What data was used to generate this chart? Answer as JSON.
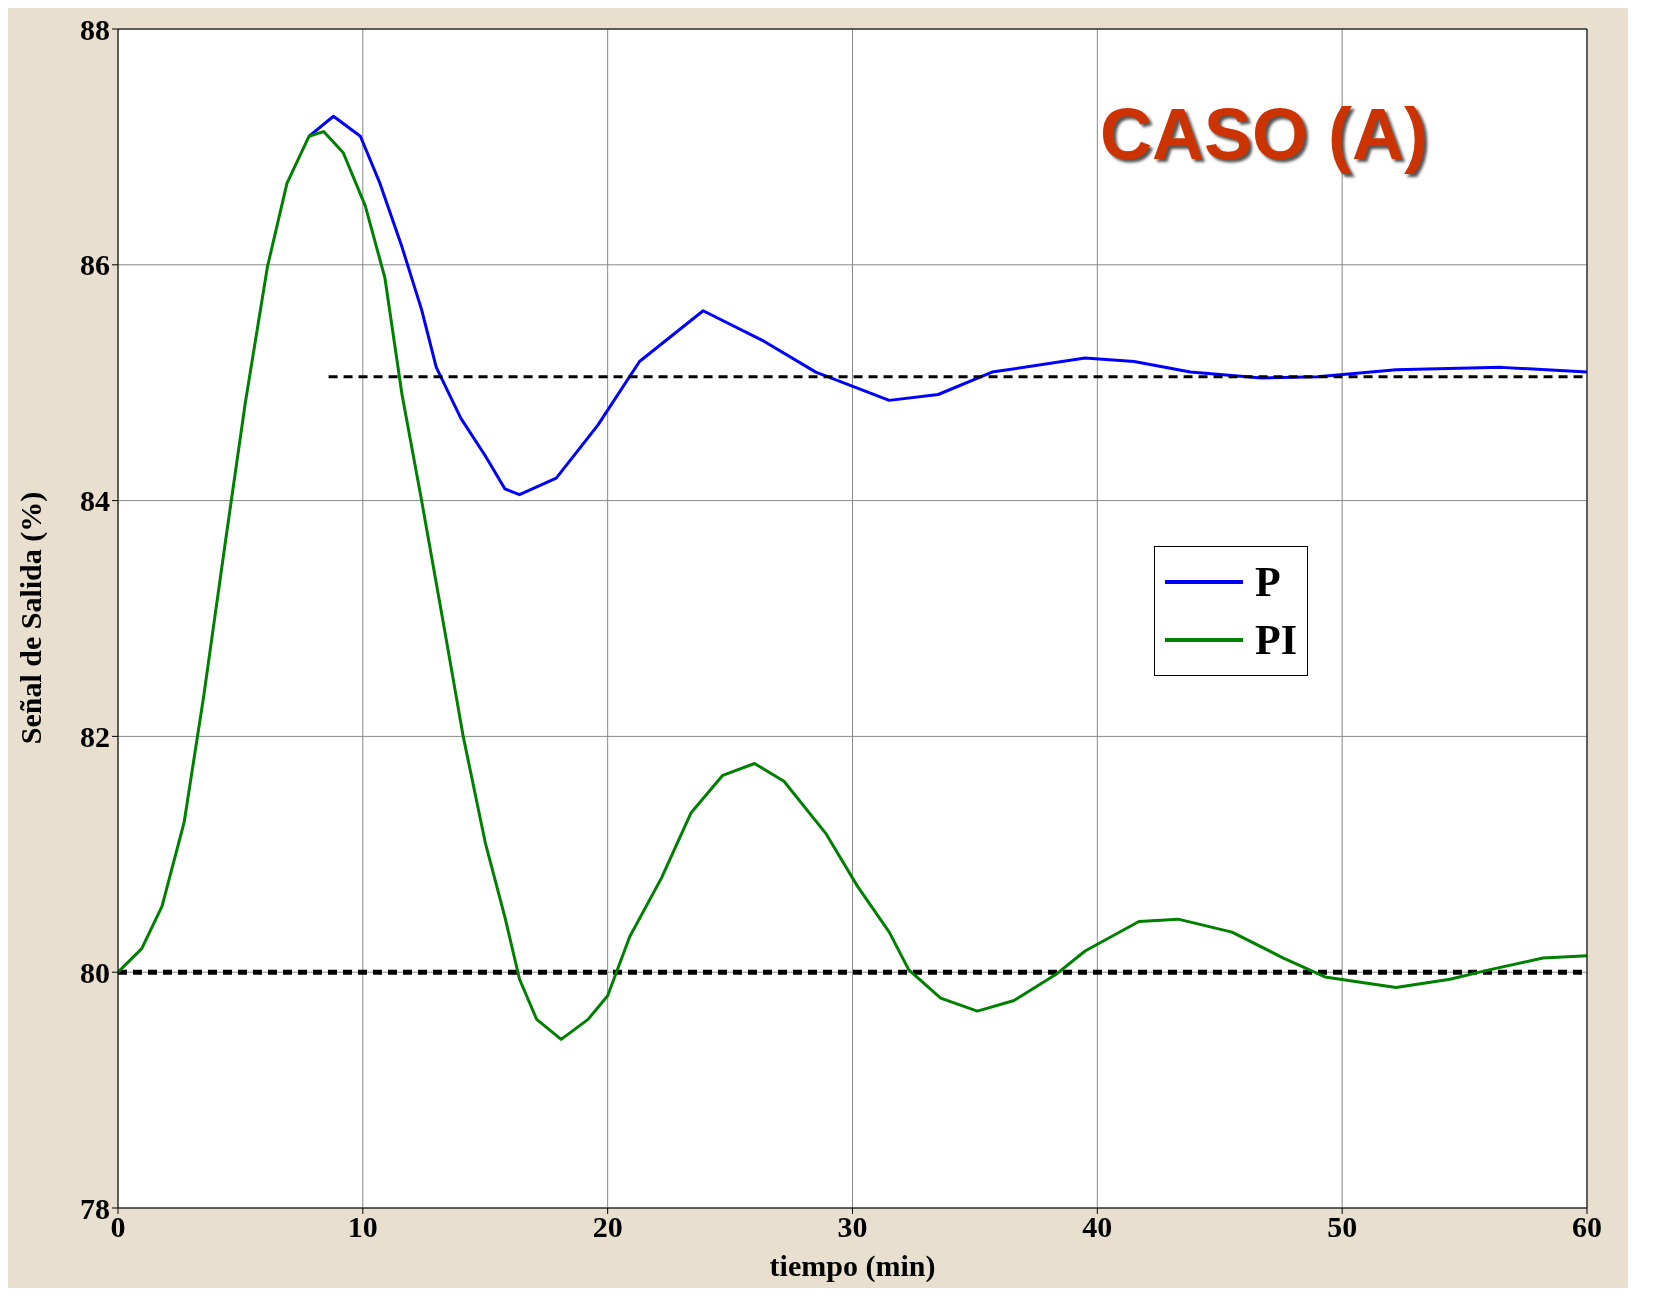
{
  "chart_data": {
    "type": "line",
    "xlabel": "tiempo (min)",
    "ylabel": "Señal de Salida (%)",
    "annotations": [
      "CASO (A)"
    ],
    "xlim": [
      0,
      60
    ],
    "ylim": [
      78,
      88
    ],
    "xticks": [
      0,
      10,
      20,
      30,
      40,
      50,
      60
    ],
    "yticks": [
      78,
      80,
      82,
      84,
      86,
      88
    ],
    "grid": true,
    "legend": "right",
    "series": [
      {
        "name": "P",
        "color": "#0000ff",
        "x": [
          7.8,
          8.8,
          9.9,
          10.7,
          11.6,
          12.4,
          13,
          14,
          15,
          15.8,
          16.4,
          17.9,
          19.6,
          21.3,
          23.9,
          26.4,
          28.5,
          31.5,
          33.5,
          35.7,
          39.5,
          41.5,
          43.8,
          46.7,
          49,
          52.2,
          56.5,
          60
        ],
        "values": [
          87.09,
          87.26,
          87.09,
          86.69,
          86.15,
          85.62,
          85.13,
          84.7,
          84.38,
          84.1,
          84.05,
          84.19,
          84.64,
          85.18,
          85.61,
          85.35,
          85.09,
          84.85,
          84.9,
          85.09,
          85.21,
          85.18,
          85.09,
          85.04,
          85.05,
          85.11,
          85.13,
          85.09
        ]
      },
      {
        "name": "PI",
        "color": "#008000",
        "x": [
          0,
          0.97,
          1.8,
          2.7,
          3.5,
          4.4,
          5.2,
          6.1,
          6.9,
          7.8,
          8.4,
          9.2,
          10.1,
          10.9,
          11.6,
          12.4,
          13.3,
          14.1,
          15,
          15.8,
          16.4,
          17.1,
          18.1,
          19.2,
          20,
          20.9,
          22.2,
          23.4,
          24.7,
          26,
          27.2,
          28.9,
          30.2,
          31.5,
          32.3,
          33.6,
          35.1,
          36.6,
          38.3,
          39.5,
          41.7,
          43.3,
          45.5,
          47.6,
          49.3,
          52.2,
          54.4,
          56,
          58.2,
          60
        ],
        "values": [
          80,
          80.2,
          80.56,
          81.27,
          82.34,
          83.67,
          84.83,
          85.98,
          86.69,
          87.09,
          87.13,
          86.95,
          86.5,
          85.89,
          84.9,
          84,
          82.95,
          82,
          81.1,
          80.47,
          79.94,
          79.6,
          79.43,
          79.6,
          79.8,
          80.3,
          80.8,
          81.35,
          81.67,
          81.77,
          81.62,
          81.18,
          80.73,
          80.34,
          80.02,
          79.78,
          79.67,
          79.76,
          79.98,
          80.18,
          80.43,
          80.45,
          80.34,
          80.12,
          79.96,
          79.87,
          79.94,
          80.02,
          80.12,
          80.14
        ]
      },
      {
        "type": "line",
        "color": "#000000",
        "line_style": "dashed",
        "x": [
          8.6,
          60
        ],
        "values": [
          85.05,
          85.05
        ]
      }
    ],
    "ref_lines": [
      {
        "axis": "y",
        "value": 80,
        "color": "#000000",
        "line_style": "dashed"
      }
    ]
  }
}
